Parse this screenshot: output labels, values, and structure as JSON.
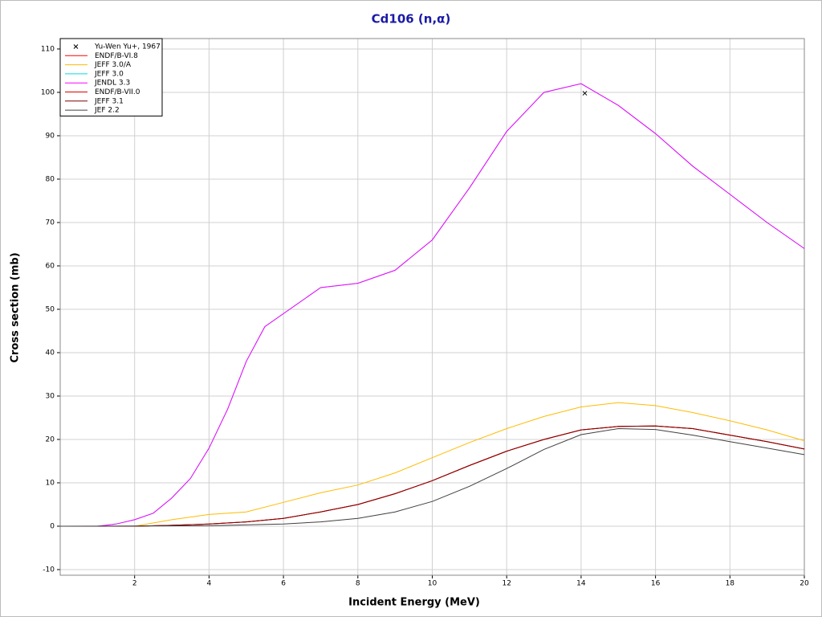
{
  "chart_data": {
    "type": "line",
    "title": "Cd106 (n,α)",
    "x_label": "Incident Energy (MeV)",
    "y_label": "Cross section (mb)",
    "xlim": [
      0,
      20
    ],
    "ylim": [
      -11.3,
      112.4
    ],
    "xticks": [
      2,
      4,
      6,
      8,
      10,
      12,
      14,
      16,
      18,
      20
    ],
    "yticks": [
      -10,
      0,
      10,
      20,
      30,
      40,
      50,
      60,
      70,
      80,
      90,
      100,
      110
    ],
    "grid": true,
    "legend": "upper left",
    "series": [
      {
        "name": "Yu-Wen Yu+, 1967",
        "color": "#000000",
        "mode": "markers",
        "x": [
          14.1
        ],
        "values": [
          99.8
        ]
      },
      {
        "name": "ENDF/B-VI.8",
        "color": "#ff0000",
        "x": [
          0,
          2,
          3,
          4,
          5,
          6,
          7,
          8,
          9,
          10,
          11,
          12,
          13,
          14,
          15,
          16,
          17,
          18,
          19,
          20
        ],
        "values": [
          0,
          0,
          0.2,
          0.5,
          1.0,
          1.8,
          3.3,
          5,
          7.5,
          10.5,
          14,
          17.3,
          20,
          22.2,
          23,
          23.1,
          22.5,
          21,
          19.5,
          17.8
        ]
      },
      {
        "name": "JEFF 3.0/A",
        "color": "#ffbb00",
        "x": [
          0,
          2,
          3,
          4,
          5,
          6,
          7,
          8,
          9,
          10,
          11,
          12,
          13,
          14,
          15,
          16,
          17,
          18,
          19,
          20
        ],
        "values": [
          0,
          0,
          1.5,
          2.7,
          3.3,
          5.5,
          7.7,
          9.5,
          12.3,
          15.8,
          19.3,
          22.5,
          25.3,
          27.5,
          28.5,
          27.8,
          26.2,
          24.3,
          22.2,
          19.7
        ]
      },
      {
        "name": "JEFF 3.0",
        "color": "#00dddd",
        "x": [
          0,
          1,
          1.5,
          2,
          2.5,
          3,
          3.5,
          4,
          4.5,
          5,
          5.5,
          6,
          7,
          8,
          9,
          10,
          11,
          12,
          13,
          14,
          15,
          16,
          17,
          18,
          19,
          20
        ],
        "values": [
          0,
          0,
          0.5,
          1.5,
          3,
          6.5,
          11,
          18,
          27,
          38,
          46,
          49,
          55,
          56,
          59,
          66,
          78,
          91,
          100,
          102,
          97,
          90.5,
          83,
          76.5,
          70,
          64
        ]
      },
      {
        "name": "JENDL 3.3",
        "color": "#ff00ff",
        "x": [
          0,
          1,
          1.5,
          2,
          2.5,
          3,
          3.5,
          4,
          4.5,
          5,
          5.5,
          6,
          7,
          8,
          9,
          10,
          11,
          12,
          13,
          14,
          15,
          16,
          17,
          18,
          19,
          20
        ],
        "values": [
          0,
          0,
          0.5,
          1.5,
          3,
          6.5,
          11,
          18,
          27,
          38,
          46,
          49,
          55,
          56,
          59,
          66,
          78,
          91,
          100,
          102,
          97,
          90.5,
          83,
          76.5,
          70,
          64
        ]
      },
      {
        "name": "ENDF/B-VII.0",
        "color": "#dd0000",
        "x": [
          0,
          2,
          3,
          4,
          5,
          6,
          7,
          8,
          9,
          10,
          11,
          12,
          13,
          14,
          15,
          16,
          17,
          18,
          19,
          20
        ],
        "values": [
          0,
          0,
          0.2,
          0.5,
          1.0,
          1.8,
          3.3,
          5,
          7.5,
          10.5,
          14,
          17.3,
          20,
          22.2,
          23,
          23.1,
          22.5,
          21,
          19.5,
          17.8
        ]
      },
      {
        "name": "JEFF 3.1",
        "color": "#800000",
        "x": [
          0,
          2,
          3,
          4,
          5,
          6,
          7,
          8,
          9,
          10,
          11,
          12,
          13,
          14,
          15,
          16,
          17,
          18,
          19,
          20
        ],
        "values": [
          0,
          0,
          0.2,
          0.5,
          1.0,
          1.8,
          3.3,
          5,
          7.5,
          10.5,
          14,
          17.3,
          20,
          22.2,
          23,
          23.1,
          22.5,
          21,
          19.5,
          17.8
        ]
      },
      {
        "name": "JEF 2.2",
        "color": "#404040",
        "x": [
          0,
          4,
          6,
          7,
          8,
          9,
          10,
          11,
          12,
          13,
          14,
          15,
          16,
          17,
          18,
          19,
          20
        ],
        "values": [
          0,
          0.1,
          0.5,
          1,
          1.8,
          3.3,
          5.7,
          9.2,
          13.3,
          17.7,
          21.1,
          22.5,
          22.3,
          21,
          19.5,
          18,
          16.5
        ]
      }
    ]
  }
}
